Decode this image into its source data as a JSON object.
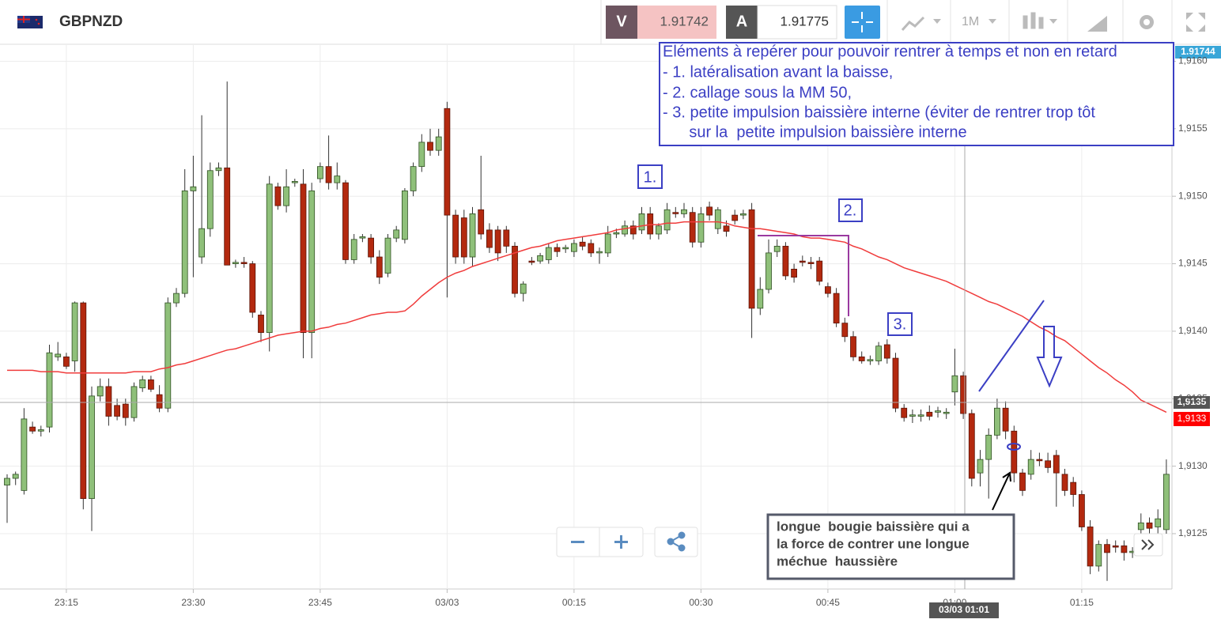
{
  "toolbar": {
    "symbol": "GBPNZD",
    "sell_label": "V",
    "sell_price": "1.91742",
    "buy_label": "A",
    "buy_price": "1.91775",
    "timeframe": "1M"
  },
  "price_badges": {
    "top": "1.91744",
    "crosshair": "1,9135",
    "current": "1,9133"
  },
  "crosshair_time": "03/03 01:01",
  "annotation": {
    "lines": [
      "Eléments à repérer pour pouvoir rentrer à temps et non en retard",
      "- 1. latéralisation avant la baisse,",
      "- 2. callage sous la MM 50,",
      "- 3. petite impulsion baissière interne (éviter de rentrer trop tôt",
      "      sur la  petite impulsion baissière interne"
    ],
    "markers": [
      "1.",
      "2.",
      "3."
    ],
    "callout": [
      "longue  bougie baissière qui a",
      "la force de contrer une longue",
      "méchue  haussière"
    ]
  },
  "chart_data": {
    "type": "candlestick",
    "up_color": "#8fc07a",
    "down_color": "#b3290f",
    "grid": true,
    "ylim": [
      1.91209,
      1.91612
    ],
    "yticks": [
      {
        "value": 1.9125,
        "label": "1,9125"
      },
      {
        "value": 1.913,
        "label": "1,9130"
      },
      {
        "value": 1.9135,
        "label": "1,9135"
      },
      {
        "value": 1.914,
        "label": "1,9140"
      },
      {
        "value": 1.9145,
        "label": "1,9145"
      },
      {
        "value": 1.915,
        "label": "1,9150"
      },
      {
        "value": 1.9155,
        "label": "1,9155"
      },
      {
        "value": 1.916,
        "label": "1,9160"
      }
    ],
    "categories": [
      null,
      null,
      null,
      null,
      null,
      null,
      null,
      "23:15",
      null,
      null,
      null,
      null,
      null,
      null,
      null,
      null,
      null,
      null,
      null,
      null,
      null,
      null,
      "23:30",
      null,
      null,
      null,
      null,
      null,
      null,
      null,
      null,
      null,
      null,
      null,
      null,
      null,
      null,
      "23:45",
      null,
      null,
      null,
      null,
      null,
      null,
      null,
      null,
      null,
      null,
      null,
      null,
      null,
      null,
      "03/03",
      null,
      null,
      null,
      null,
      null,
      null,
      null,
      null,
      null,
      null,
      null,
      null,
      null,
      null,
      "00:15",
      null,
      null,
      null,
      null,
      null,
      null,
      null,
      null,
      null,
      null,
      null,
      null,
      null,
      null,
      "00:30",
      null,
      null,
      null,
      null,
      null,
      null,
      null,
      null,
      null,
      null,
      null,
      null,
      null,
      null,
      "00:45",
      null,
      null,
      null,
      null,
      null,
      null,
      null,
      null,
      null,
      null,
      null,
      null,
      null,
      null,
      "01:00",
      null,
      null,
      null,
      null,
      null,
      null,
      null,
      null,
      null,
      null,
      null,
      null,
      null,
      null,
      "01:15",
      null,
      null,
      null,
      null,
      null,
      null,
      null,
      null,
      null,
      null
    ],
    "candles": [
      [
        1.91286,
        1.91294,
        1.91258,
        1.91291
      ],
      [
        1.91291,
        1.91296,
        1.91286,
        1.91294
      ],
      [
        1.91282,
        1.91343,
        1.91279,
        1.91335
      ],
      [
        1.91329,
        1.91333,
        1.91324,
        1.91326
      ],
      [
        1.91326,
        1.9133,
        1.91322,
        1.91327
      ],
      [
        1.91329,
        1.9139,
        1.91325,
        1.91384
      ],
      [
        1.91381,
        1.91392,
        1.91378,
        1.91383
      ],
      [
        1.91381,
        1.91384,
        1.91372,
        1.91374
      ],
      [
        1.91378,
        1.91422,
        1.9137,
        1.91421
      ],
      [
        1.91421,
        1.91422,
        1.91268,
        1.91276
      ],
      [
        1.91276,
        1.91359,
        1.91252,
        1.91352
      ],
      [
        1.91352,
        1.91365,
        1.91348,
        1.91359
      ],
      [
        1.91359,
        1.91365,
        1.9133,
        1.91337
      ],
      [
        1.91345,
        1.9135,
        1.91334,
        1.91337
      ],
      [
        1.91346,
        1.9135,
        1.9133,
        1.91336
      ],
      [
        1.91336,
        1.91362,
        1.91333,
        1.91359
      ],
      [
        1.91358,
        1.91367,
        1.91355,
        1.91364
      ],
      [
        1.91364,
        1.91367,
        1.91355,
        1.91357
      ],
      [
        1.91353,
        1.9136,
        1.9134,
        1.91343
      ],
      [
        1.91343,
        1.91425,
        1.9134,
        1.91421
      ],
      [
        1.91421,
        1.91432,
        1.91418,
        1.91428
      ],
      [
        1.91428,
        1.9152,
        1.91425,
        1.91504
      ],
      [
        1.91504,
        1.9153,
        1.9144,
        1.91507
      ],
      [
        1.91455,
        1.9156,
        1.9145,
        1.91476
      ],
      [
        1.91476,
        1.91525,
        1.9147,
        1.91519
      ],
      [
        1.91519,
        1.91525,
        1.91515,
        1.91521
      ],
      [
        1.91521,
        1.91585,
        1.91449,
        1.91449
      ],
      [
        1.9145,
        1.91453,
        1.91447,
        1.91451
      ],
      [
        1.91451,
        1.91455,
        1.91447,
        1.9145
      ],
      [
        1.9145,
        1.91452,
        1.9141,
        1.91414
      ],
      [
        1.91412,
        1.91415,
        1.91392,
        1.91399
      ],
      [
        1.91399,
        1.91515,
        1.91385,
        1.91509
      ],
      [
        1.91507,
        1.9151,
        1.9149,
        1.91493
      ],
      [
        1.91493,
        1.9152,
        1.91488,
        1.91507
      ],
      [
        1.9151,
        1.91513,
        1.91507,
        1.91511
      ],
      [
        1.91509,
        1.9152,
        1.9138,
        1.91399
      ],
      [
        1.91399,
        1.9151,
        1.9138,
        1.91504
      ],
      [
        1.91513,
        1.91525,
        1.9151,
        1.91522
      ],
      [
        1.91522,
        1.91545,
        1.91505,
        1.9151
      ],
      [
        1.9151,
        1.91525,
        1.91505,
        1.91515
      ],
      [
        1.9151,
        1.91512,
        1.9145,
        1.91453
      ],
      [
        1.91453,
        1.91472,
        1.9145,
        1.91468
      ],
      [
        1.91469,
        1.91472,
        1.91466,
        1.9147
      ],
      [
        1.91469,
        1.91472,
        1.9145,
        1.91455
      ],
      [
        1.91455,
        1.9146,
        1.91435,
        1.9144
      ],
      [
        1.91443,
        1.91472,
        1.9144,
        1.91469
      ],
      [
        1.91469,
        1.91478,
        1.91466,
        1.91475
      ],
      [
        1.91468,
        1.91506,
        1.91465,
        1.91504
      ],
      [
        1.91504,
        1.91525,
        1.915,
        1.91522
      ],
      [
        1.91522,
        1.91546,
        1.91518,
        1.9154
      ],
      [
        1.9154,
        1.9155,
        1.9153,
        1.91534
      ],
      [
        1.91534,
        1.9155,
        1.9153,
        1.91544
      ],
      [
        1.91565,
        1.9157,
        1.91425,
        1.91486
      ],
      [
        1.91486,
        1.9149,
        1.9145,
        1.91455
      ],
      [
        1.91484,
        1.9149,
        1.9145,
        1.91455
      ],
      [
        1.91455,
        1.91492,
        1.91448,
        1.91487
      ],
      [
        1.9149,
        1.9153,
        1.91468,
        1.91472
      ],
      [
        1.91475,
        1.9148,
        1.91458,
        1.91462
      ],
      [
        1.91475,
        1.91478,
        1.91452,
        1.91458
      ],
      [
        1.91475,
        1.91478,
        1.91458,
        1.91463
      ],
      [
        1.91463,
        1.91466,
        1.91425,
        1.91428
      ],
      [
        1.91428,
        1.91437,
        1.91422,
        1.91435
      ],
      [
        1.91452,
        1.91455,
        1.91449,
        1.91451
      ],
      [
        1.91452,
        1.91458,
        1.9145,
        1.91456
      ],
      [
        1.91453,
        1.91465,
        1.9145,
        1.91462
      ],
      [
        1.91462,
        1.91465,
        1.91455,
        1.91459
      ],
      [
        1.91461,
        1.91464,
        1.91458,
        1.91462
      ],
      [
        1.91459,
        1.91468,
        1.91455,
        1.91465
      ],
      [
        1.91466,
        1.9147,
        1.9146,
        1.91463
      ],
      [
        1.91465,
        1.91468,
        1.91455,
        1.91458
      ],
      [
        1.91458,
        1.91462,
        1.9145,
        1.91459
      ],
      [
        1.91458,
        1.91478,
        1.91455,
        1.91472
      ],
      [
        1.91472,
        1.91476,
        1.91469,
        1.91473
      ],
      [
        1.91472,
        1.91482,
        1.9147,
        1.91478
      ],
      [
        1.91478,
        1.91482,
        1.91468,
        1.91472
      ],
      [
        1.91475,
        1.91492,
        1.91472,
        1.91487
      ],
      [
        1.91487,
        1.91492,
        1.91468,
        1.91472
      ],
      [
        1.91472,
        1.9148,
        1.91468,
        1.91478
      ],
      [
        1.91475,
        1.91495,
        1.91472,
        1.9149
      ],
      [
        1.91488,
        1.91492,
        1.91484,
        1.91487
      ],
      [
        1.91487,
        1.91495,
        1.91484,
        1.9149
      ],
      [
        1.91488,
        1.91492,
        1.91462,
        1.91466
      ],
      [
        1.91466,
        1.91492,
        1.91462,
        1.91487
      ],
      [
        1.91492,
        1.91496,
        1.91482,
        1.91486
      ],
      [
        1.91476,
        1.91492,
        1.91472,
        1.9149
      ],
      [
        1.91478,
        1.91482,
        1.9147,
        1.91474
      ],
      [
        1.91486,
        1.9149,
        1.91479,
        1.91482
      ],
      [
        1.91486,
        1.9149,
        1.91483,
        1.91487
      ],
      [
        1.9149,
        1.91495,
        1.91395,
        1.91417
      ],
      [
        1.91417,
        1.9144,
        1.91412,
        1.91431
      ],
      [
        1.91431,
        1.91468,
        1.91428,
        1.91458
      ],
      [
        1.91459,
        1.91468,
        1.91455,
        1.91463
      ],
      [
        1.91463,
        1.91466,
        1.91438,
        1.91441
      ],
      [
        1.91446,
        1.9145,
        1.91436,
        1.9144
      ],
      [
        1.91452,
        1.91456,
        1.91448,
        1.91451
      ],
      [
        1.91451,
        1.91455,
        1.91446,
        1.9145
      ],
      [
        1.91452,
        1.91455,
        1.91434,
        1.91437
      ],
      [
        1.91433,
        1.91436,
        1.91425,
        1.91428
      ],
      [
        1.91428,
        1.91432,
        1.91403,
        1.91406
      ],
      [
        1.91406,
        1.9141,
        1.91392,
        1.91396
      ],
      [
        1.91396,
        1.914,
        1.91378,
        1.91381
      ],
      [
        1.91381,
        1.91385,
        1.91376,
        1.91378
      ],
      [
        1.91378,
        1.91382,
        1.91375,
        1.91379
      ],
      [
        1.91378,
        1.91392,
        1.91375,
        1.91389
      ],
      [
        1.9139,
        1.91394,
        1.91376,
        1.9138
      ],
      [
        1.9138,
        1.91384,
        1.9134,
        1.91343
      ],
      [
        1.91343,
        1.91346,
        1.91333,
        1.91336
      ],
      [
        1.91337,
        1.91342,
        1.91332,
        1.91338
      ],
      [
        1.91337,
        1.91342,
        1.91333,
        1.91338
      ],
      [
        1.9134,
        1.91345,
        1.91334,
        1.91337
      ],
      [
        1.9134,
        1.91344,
        1.91336,
        1.91341
      ],
      [
        1.91339,
        1.91343,
        1.91335,
        1.9134
      ],
      [
        1.91355,
        1.91387,
        1.91345,
        1.91367
      ],
      [
        1.91367,
        1.9137,
        1.91335,
        1.91339
      ],
      [
        1.91339,
        1.91342,
        1.91285,
        1.91291
      ],
      [
        1.91295,
        1.91312,
        1.91285,
        1.91305
      ],
      [
        1.91305,
        1.91328,
        1.91276,
        1.91323
      ],
      [
        1.91323,
        1.9135,
        1.9132,
        1.91343
      ],
      [
        1.91343,
        1.91348,
        1.9132,
        1.91326
      ],
      [
        1.91326,
        1.9133,
        1.91288,
        1.91295
      ],
      [
        1.91295,
        1.91298,
        1.91278,
        1.91282
      ],
      [
        1.91294,
        1.91312,
        1.9129,
        1.91305
      ],
      [
        1.91305,
        1.9131,
        1.913,
        1.91304
      ],
      [
        1.91304,
        1.9131,
        1.91295,
        1.91299
      ],
      [
        1.91308,
        1.91312,
        1.9127,
        1.91295
      ],
      [
        1.91294,
        1.91298,
        1.91278,
        1.91282
      ],
      [
        1.91288,
        1.91292,
        1.9127,
        1.91279
      ],
      [
        1.91279,
        1.91282,
        1.91252,
        1.91255
      ],
      [
        1.91255,
        1.9126,
        1.9122,
        1.91226
      ],
      [
        1.91226,
        1.91245,
        1.91222,
        1.91242
      ],
      [
        1.91242,
        1.91246,
        1.91215,
        1.91236
      ],
      [
        1.91241,
        1.91245,
        1.91236,
        1.9124
      ],
      [
        1.91241,
        1.91245,
        1.9123,
        1.91236
      ],
      [
        1.91236,
        1.9124,
        1.91232,
        1.91237
      ],
      [
        1.91253,
        1.91265,
        1.9125,
        1.91258
      ],
      [
        1.91258,
        1.91262,
        1.9125,
        1.91254
      ],
      [
        1.91255,
        1.91268,
        1.9125,
        1.91261
      ],
      [
        1.91253,
        1.91305,
        1.9125,
        1.91294
      ]
    ],
    "moving_average": {
      "color": "#f03c3c",
      "values": [
        1.91371,
        1.91371,
        1.91371,
        1.91371,
        1.9137,
        1.9137,
        1.9137,
        1.91369,
        1.91369,
        1.91369,
        1.91369,
        1.91369,
        1.91369,
        1.91369,
        1.91369,
        1.9137,
        1.9137,
        1.9137,
        1.91372,
        1.91373,
        1.91375,
        1.91376,
        1.91378,
        1.9138,
        1.91382,
        1.91384,
        1.91386,
        1.91387,
        1.91389,
        1.91391,
        1.91393,
        1.91395,
        1.91397,
        1.91398,
        1.91399,
        1.914,
        1.914,
        1.91402,
        1.91403,
        1.91405,
        1.91406,
        1.91408,
        1.9141,
        1.91412,
        1.91413,
        1.91414,
        1.91414,
        1.91415,
        1.9142,
        1.91426,
        1.91431,
        1.91436,
        1.9144,
        1.91443,
        1.91445,
        1.91448,
        1.9145,
        1.91452,
        1.91454,
        1.91456,
        1.91458,
        1.9146,
        1.91462,
        1.91463,
        1.91465,
        1.91467,
        1.91468,
        1.91469,
        1.9147,
        1.91471,
        1.91472,
        1.91473,
        1.91475,
        1.91476,
        1.91477,
        1.91478,
        1.91479,
        1.91479,
        1.9148,
        1.9148,
        1.91481,
        1.91481,
        1.91481,
        1.91481,
        1.91481,
        1.9148,
        1.91478,
        1.91477,
        1.91476,
        1.91476,
        1.91475,
        1.91474,
        1.91473,
        1.91472,
        1.9147,
        1.91469,
        1.91469,
        1.91468,
        1.91467,
        1.91466,
        1.91463,
        1.91461,
        1.91458,
        1.91455,
        1.91453,
        1.9145,
        1.91447,
        1.91445,
        1.91443,
        1.91441,
        1.91439,
        1.91437,
        1.91434,
        1.91431,
        1.91428,
        1.91425,
        1.91422,
        1.9142,
        1.91417,
        1.91414,
        1.91411,
        1.91407,
        1.91403,
        1.914,
        1.91396,
        1.91393,
        1.91388,
        1.91383,
        1.91378,
        1.91373,
        1.91369,
        1.91364,
        1.9136,
        1.91355,
        1.91349,
        1.91346,
        1.91343,
        1.9134
      ]
    }
  }
}
